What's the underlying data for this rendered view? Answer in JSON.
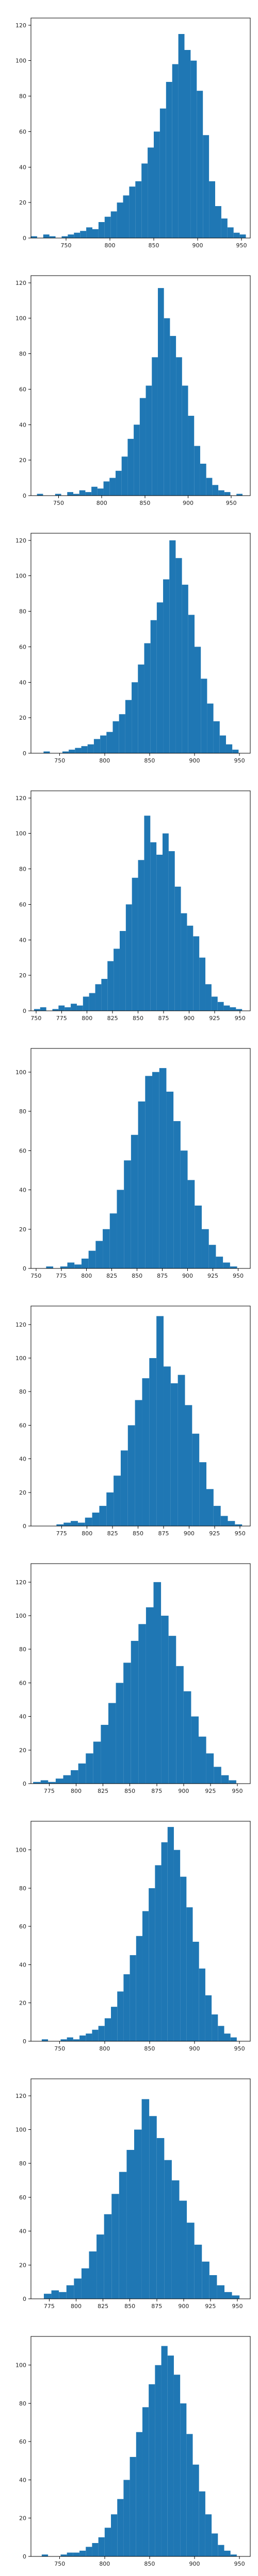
{
  "figure": {
    "bar_color": "#1f77b4"
  },
  "chart_data": [
    {
      "type": "bar",
      "xlim": [
        710,
        960
      ],
      "ylim": [
        0,
        124
      ],
      "xticks": [
        750,
        800,
        850,
        900,
        950
      ],
      "yticks": [
        0,
        20,
        40,
        60,
        80,
        100,
        120
      ],
      "bin_edges": [
        710,
        717,
        724,
        731,
        738,
        745,
        752,
        759,
        766,
        773,
        780,
        787,
        794,
        801,
        808,
        815,
        822,
        829,
        836,
        843,
        850,
        857,
        864,
        871,
        878,
        885,
        892,
        899,
        906,
        913,
        920,
        927,
        934,
        941,
        948,
        955
      ],
      "values": [
        1,
        0,
        2,
        1,
        0,
        1,
        2,
        3,
        4,
        6,
        5,
        9,
        12,
        15,
        20,
        24,
        29,
        32,
        42,
        51,
        60,
        73,
        88,
        98,
        115,
        106,
        100,
        83,
        58,
        32,
        18,
        11,
        6,
        3,
        2
      ]
    },
    {
      "type": "bar",
      "xlim": [
        718,
        972
      ],
      "ylim": [
        0,
        124
      ],
      "xticks": [
        750,
        800,
        850,
        900,
        950
      ],
      "yticks": [
        0,
        20,
        40,
        60,
        80,
        100,
        120
      ],
      "bin_edges": [
        725,
        732,
        739,
        746,
        753,
        760,
        767,
        774,
        781,
        788,
        795,
        802,
        809,
        816,
        823,
        830,
        837,
        844,
        851,
        858,
        865,
        872,
        879,
        886,
        893,
        900,
        907,
        914,
        921,
        928,
        935,
        942,
        949,
        956,
        963
      ],
      "values": [
        1,
        0,
        0,
        1,
        0,
        2,
        1,
        3,
        2,
        5,
        4,
        8,
        10,
        14,
        22,
        32,
        40,
        55,
        62,
        78,
        117,
        100,
        90,
        78,
        62,
        45,
        28,
        18,
        10,
        6,
        3,
        2,
        0,
        1
      ]
    },
    {
      "type": "bar",
      "xlim": [
        718,
        962
      ],
      "ylim": [
        0,
        124
      ],
      "xticks": [
        750,
        800,
        850,
        900,
        950
      ],
      "yticks": [
        0,
        20,
        40,
        60,
        80,
        100,
        120
      ],
      "bin_edges": [
        725,
        732,
        739,
        746,
        753,
        760,
        767,
        774,
        781,
        788,
        795,
        802,
        809,
        816,
        823,
        830,
        837,
        844,
        851,
        858,
        865,
        872,
        879,
        886,
        893,
        900,
        907,
        914,
        921,
        928,
        935,
        942,
        949
      ],
      "values": [
        0,
        1,
        0,
        0,
        1,
        2,
        3,
        4,
        5,
        8,
        10,
        12,
        18,
        22,
        30,
        40,
        50,
        62,
        75,
        85,
        98,
        120,
        110,
        95,
        78,
        60,
        42,
        28,
        18,
        10,
        5,
        2
      ]
    },
    {
      "type": "bar",
      "xlim": [
        745,
        960
      ],
      "ylim": [
        0,
        124
      ],
      "xticks": [
        750,
        775,
        800,
        825,
        850,
        875,
        900,
        925,
        950
      ],
      "yticks": [
        0,
        20,
        40,
        60,
        80,
        100,
        120
      ],
      "bin_edges": [
        748,
        754,
        760,
        766,
        772,
        778,
        784,
        790,
        796,
        802,
        808,
        814,
        820,
        826,
        832,
        838,
        844,
        850,
        856,
        862,
        868,
        874,
        880,
        886,
        892,
        898,
        904,
        910,
        916,
        922,
        928,
        934,
        940,
        946,
        952
      ],
      "values": [
        1,
        2,
        0,
        1,
        3,
        2,
        4,
        3,
        8,
        10,
        15,
        18,
        28,
        35,
        45,
        60,
        75,
        85,
        110,
        95,
        88,
        100,
        90,
        70,
        55,
        48,
        42,
        30,
        15,
        8,
        5,
        3,
        2,
        1
      ]
    },
    {
      "type": "bar",
      "xlim": [
        745,
        962
      ],
      "ylim": [
        0,
        112
      ],
      "xticks": [
        750,
        775,
        800,
        825,
        850,
        875,
        900,
        925,
        950
      ],
      "yticks": [
        0,
        20,
        40,
        60,
        80,
        100
      ],
      "bin_edges": [
        760,
        767,
        774,
        781,
        788,
        795,
        802,
        809,
        816,
        823,
        830,
        837,
        844,
        851,
        858,
        865,
        872,
        879,
        886,
        893,
        900,
        907,
        914,
        921,
        928,
        935,
        942,
        949
      ],
      "values": [
        1,
        0,
        1,
        3,
        2,
        5,
        9,
        14,
        20,
        28,
        40,
        55,
        68,
        85,
        98,
        100,
        102,
        90,
        75,
        60,
        45,
        32,
        20,
        12,
        6,
        3,
        1
      ]
    },
    {
      "type": "bar",
      "xlim": [
        745,
        960
      ],
      "ylim": [
        0,
        131
      ],
      "xticks": [
        775,
        800,
        825,
        850,
        875,
        900,
        925,
        950
      ],
      "yticks": [
        0,
        20,
        40,
        60,
        80,
        100,
        120
      ],
      "bin_edges": [
        770,
        777,
        784,
        791,
        798,
        805,
        812,
        819,
        826,
        833,
        840,
        847,
        854,
        861,
        868,
        875,
        882,
        889,
        896,
        903,
        910,
        917,
        924,
        931,
        938,
        945,
        952
      ],
      "values": [
        1,
        2,
        3,
        2,
        5,
        8,
        12,
        20,
        30,
        45,
        60,
        75,
        88,
        100,
        125,
        95,
        85,
        90,
        72,
        55,
        38,
        22,
        12,
        6,
        3,
        1
      ]
    },
    {
      "type": "bar",
      "xlim": [
        758,
        962
      ],
      "ylim": [
        0,
        131
      ],
      "xticks": [
        775,
        800,
        825,
        850,
        875,
        900,
        925,
        950
      ],
      "yticks": [
        0,
        20,
        40,
        60,
        80,
        100,
        120
      ],
      "bin_edges": [
        760,
        767,
        774,
        781,
        788,
        795,
        802,
        809,
        816,
        823,
        830,
        837,
        844,
        851,
        858,
        865,
        872,
        879,
        886,
        893,
        900,
        907,
        914,
        921,
        928,
        935,
        942,
        949
      ],
      "values": [
        1,
        2,
        1,
        3,
        5,
        8,
        12,
        18,
        25,
        35,
        48,
        60,
        72,
        85,
        95,
        105,
        120,
        100,
        88,
        70,
        55,
        40,
        28,
        18,
        10,
        5,
        2
      ]
    },
    {
      "type": "bar",
      "xlim": [
        718,
        962
      ],
      "ylim": [
        0,
        115
      ],
      "xticks": [
        750,
        800,
        850,
        900,
        950
      ],
      "yticks": [
        0,
        20,
        40,
        60,
        80,
        100
      ],
      "bin_edges": [
        730,
        737,
        744,
        751,
        758,
        765,
        772,
        779,
        786,
        793,
        800,
        807,
        814,
        821,
        828,
        835,
        842,
        849,
        856,
        863,
        870,
        877,
        884,
        891,
        898,
        905,
        912,
        919,
        926,
        933,
        940,
        947
      ],
      "values": [
        1,
        0,
        0,
        1,
        2,
        1,
        3,
        4,
        6,
        8,
        12,
        18,
        26,
        35,
        45,
        55,
        68,
        80,
        92,
        104,
        112,
        100,
        86,
        70,
        52,
        38,
        24,
        14,
        8,
        4,
        2
      ]
    },
    {
      "type": "bar",
      "xlim": [
        758,
        962
      ],
      "ylim": [
        0,
        130
      ],
      "xticks": [
        775,
        800,
        825,
        850,
        875,
        900,
        925,
        950
      ],
      "yticks": [
        0,
        20,
        40,
        60,
        80,
        100,
        120
      ],
      "bin_edges": [
        770,
        777,
        784,
        791,
        798,
        805,
        812,
        819,
        826,
        833,
        840,
        847,
        854,
        861,
        868,
        875,
        882,
        889,
        896,
        903,
        910,
        917,
        924,
        931,
        938,
        945,
        952
      ],
      "values": [
        3,
        5,
        4,
        8,
        12,
        18,
        28,
        38,
        50,
        62,
        75,
        88,
        100,
        118,
        108,
        95,
        82,
        70,
        58,
        45,
        32,
        22,
        14,
        8,
        4,
        2
      ]
    },
    {
      "type": "bar",
      "xlim": [
        718,
        962
      ],
      "ylim": [
        0,
        115
      ],
      "xticks": [
        750,
        800,
        850,
        900,
        950
      ],
      "yticks": [
        0,
        20,
        40,
        60,
        80,
        100
      ],
      "bin_edges": [
        730,
        737,
        744,
        751,
        758,
        765,
        772,
        779,
        786,
        793,
        800,
        807,
        814,
        821,
        828,
        835,
        842,
        849,
        856,
        863,
        870,
        877,
        884,
        891,
        898,
        905,
        912,
        919,
        926,
        933,
        940,
        947
      ],
      "values": [
        1,
        0,
        0,
        1,
        2,
        2,
        3,
        5,
        7,
        10,
        15,
        22,
        30,
        40,
        52,
        65,
        78,
        90,
        100,
        110,
        105,
        95,
        80,
        64,
        48,
        34,
        22,
        12,
        6,
        3,
        1
      ]
    }
  ]
}
